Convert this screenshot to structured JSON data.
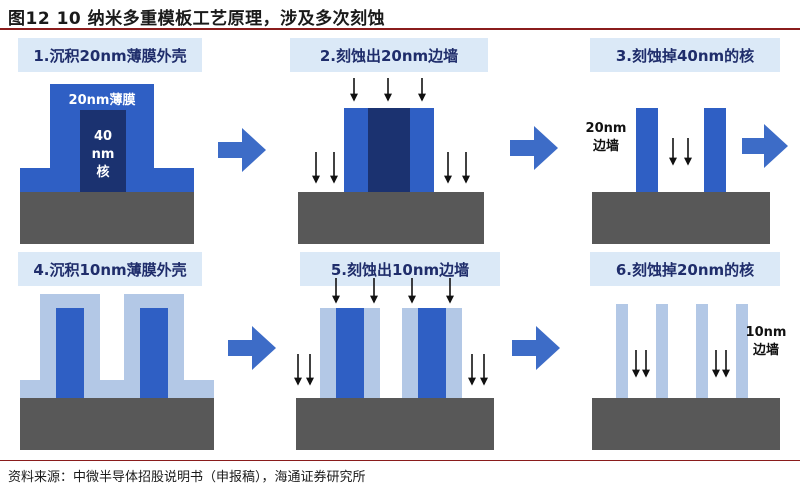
{
  "figure_title": "图12 10  纳米多重模板工艺原理，涉及多次刻蚀",
  "source_note": "资料来源：中微半导体招股说明书（申报稿），海通证券研究所",
  "steps": [
    {
      "label": "1.沉积20nm薄膜外壳"
    },
    {
      "label": "2.刻蚀出20nm边墙"
    },
    {
      "label": "3.刻蚀掉40nm的核"
    },
    {
      "label": "4.沉积10nm薄膜外壳"
    },
    {
      "label": "5.刻蚀出10nm边墙"
    },
    {
      "label": "6.刻蚀掉20nm的核"
    }
  ],
  "annotations": {
    "film_20nm": "20nm薄膜",
    "core_size": "40",
    "core_unit": "nm",
    "core_word": "核",
    "wall_20nm_line1": "20nm",
    "wall_20nm_line2": "边墙",
    "wall_10nm_line1": "10nm",
    "wall_10nm_line2": "边墙"
  },
  "colors": {
    "film_blue": "#2f5fc4",
    "core_navy": "#1b3270",
    "light_film": "#b3c8e6",
    "substrate": "#585858",
    "flow_arrow": "#3d6cc7",
    "banner_bg": "#dbe9f7",
    "banner_text": "#1f2d6b"
  }
}
